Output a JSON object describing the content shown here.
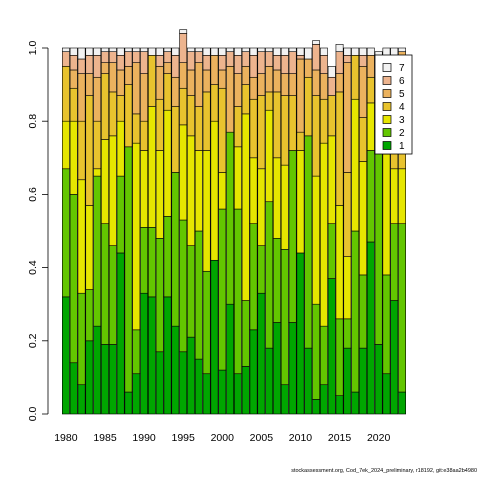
{
  "footer_text": "stockassessment.org, Cod_7ek_2024_preliminary, r18192, git:e38aa2b4980",
  "chart_data": {
    "type": "bar",
    "stacked": true,
    "categories": [
      1980,
      1981,
      1982,
      1983,
      1984,
      1985,
      1986,
      1987,
      1988,
      1989,
      1990,
      1991,
      1992,
      1993,
      1994,
      1995,
      1996,
      1997,
      1998,
      1999,
      2000,
      2001,
      2002,
      2003,
      2004,
      2005,
      2006,
      2007,
      2008,
      2009,
      2010,
      2011,
      2012,
      2013,
      2014,
      2015,
      2016,
      2017,
      2018,
      2019,
      2020,
      2021,
      2022,
      2023
    ],
    "x_tick_labels": [
      "1980",
      "1985",
      "1990",
      "1995",
      "2000",
      "2005",
      "2010",
      "2015",
      "2020"
    ],
    "y_tick_labels": [
      "0.0",
      "0.2",
      "0.4",
      "0.6",
      "0.8",
      "1.0"
    ],
    "ylim": [
      0,
      1
    ],
    "legend_position": "top-right",
    "series": [
      {
        "name": "1",
        "color": "#00a600",
        "values": [
          0.32,
          0.14,
          0.08,
          0.2,
          0.24,
          0.19,
          0.19,
          0.44,
          0.06,
          0.11,
          0.33,
          0.32,
          0.17,
          0.32,
          0.24,
          0.17,
          0.21,
          0.15,
          0.11,
          0.42,
          0.12,
          0.3,
          0.11,
          0.13,
          0.23,
          0.33,
          0.18,
          0.25,
          0.08,
          0.25,
          0.44,
          0.18,
          0.04,
          0.08,
          0.37,
          0.05,
          0.18,
          0.06,
          0.18,
          0.47,
          0.19,
          0.11,
          0.31,
          0.06
        ]
      },
      {
        "name": "2",
        "color": "#63c600",
        "values": [
          0.35,
          0.46,
          0.25,
          0.14,
          0.41,
          0.33,
          0.27,
          0.21,
          0.67,
          0.12,
          0.18,
          0.19,
          0.31,
          0.22,
          0.42,
          0.36,
          0.25,
          0.35,
          0.28,
          0.0,
          0.44,
          0.47,
          0.45,
          0.18,
          0.29,
          0.13,
          0.4,
          0.23,
          0.37,
          0.47,
          0.0,
          0.58,
          0.26,
          0.16,
          0.15,
          0.21,
          0.08,
          0.44,
          0.2,
          0.25,
          0.53,
          0.27,
          0.21,
          0.46
        ]
      },
      {
        "name": "3",
        "color": "#e6e600",
        "values": [
          0.13,
          0.2,
          0.31,
          0.23,
          0.02,
          0.23,
          0.3,
          0.15,
          0.0,
          0.51,
          0.21,
          0.33,
          0.24,
          0.29,
          0.0,
          0.26,
          0.3,
          0.22,
          0.33,
          0.38,
          0.1,
          0.0,
          0.17,
          0.51,
          0.18,
          0.21,
          0.25,
          0.22,
          0.23,
          0.0,
          0.28,
          0.0,
          0.35,
          0.5,
          0.24,
          0.31,
          0.17,
          0.36,
          0.31,
          0.13,
          0.0,
          0.33,
          0.15,
          0.15
        ]
      },
      {
        "name": "4",
        "color": "#e8c32e",
        "values": [
          0.15,
          0.09,
          0.16,
          0.3,
          0.13,
          0.18,
          0.12,
          0.07,
          0.17,
          0.08,
          0.08,
          0.14,
          0.14,
          0.1,
          0.18,
          0.1,
          0.11,
          0.12,
          0.16,
          0.1,
          0.23,
          0.0,
          0.11,
          0.08,
          0.16,
          0.2,
          0.05,
          0.18,
          0.19,
          0.15,
          0.05,
          0.16,
          0.22,
          0.12,
          0.11,
          0.31,
          0.23,
          0.12,
          0.12,
          0.07,
          0.18,
          0.16,
          0.21,
          0.14
        ]
      },
      {
        "name": "5",
        "color": "#ebb25e",
        "values": [
          0.0,
          0.05,
          0.13,
          0.06,
          0.12,
          0.03,
          0.08,
          0.07,
          0.05,
          0.14,
          0.13,
          0.0,
          0.09,
          0.03,
          0.08,
          0.07,
          0.07,
          0.12,
          0.06,
          0.08,
          0.05,
          0.18,
          0.09,
          0.05,
          0.06,
          0.06,
          0.07,
          0.06,
          0.06,
          0.06,
          0.2,
          0.05,
          0.07,
          0.07,
          0.0,
          0.05,
          0.3,
          0.0,
          0.14,
          0.06,
          0.0,
          0.06,
          0.05,
          0.18
        ]
      },
      {
        "name": "6",
        "color": "#edb48e",
        "values": [
          0.04,
          0.04,
          0.04,
          0.05,
          0.06,
          0.03,
          0.03,
          0.04,
          0.04,
          0.03,
          0.06,
          0.0,
          0.03,
          0.03,
          0.06,
          0.08,
          0.05,
          0.03,
          0.04,
          0.0,
          0.04,
          0.04,
          0.05,
          0.04,
          0.06,
          0.06,
          0.04,
          0.04,
          0.05,
          0.06,
          0.01,
          0.0,
          0.07,
          0.05,
          0.05,
          0.06,
          0.02,
          0.0,
          0.03,
          0.0,
          0.03,
          0.05,
          0.05,
          0.0
        ]
      },
      {
        "name": "7",
        "color": "#f2f2f2",
        "values": [
          0.01,
          0.02,
          0.03,
          0.02,
          0.02,
          0.01,
          0.01,
          0.02,
          0.01,
          0.01,
          0.01,
          0.02,
          0.02,
          0.01,
          0.02,
          0.01,
          0.01,
          0.01,
          0.02,
          0.02,
          0.02,
          0.01,
          0.02,
          0.01,
          0.02,
          0.01,
          0.01,
          0.02,
          0.02,
          0.01,
          0.02,
          0.03,
          0.01,
          0.02,
          0.03,
          0.02,
          0.02,
          0.02,
          0.02,
          0.02,
          0.06,
          0.02,
          0.02,
          0.01
        ]
      }
    ]
  }
}
